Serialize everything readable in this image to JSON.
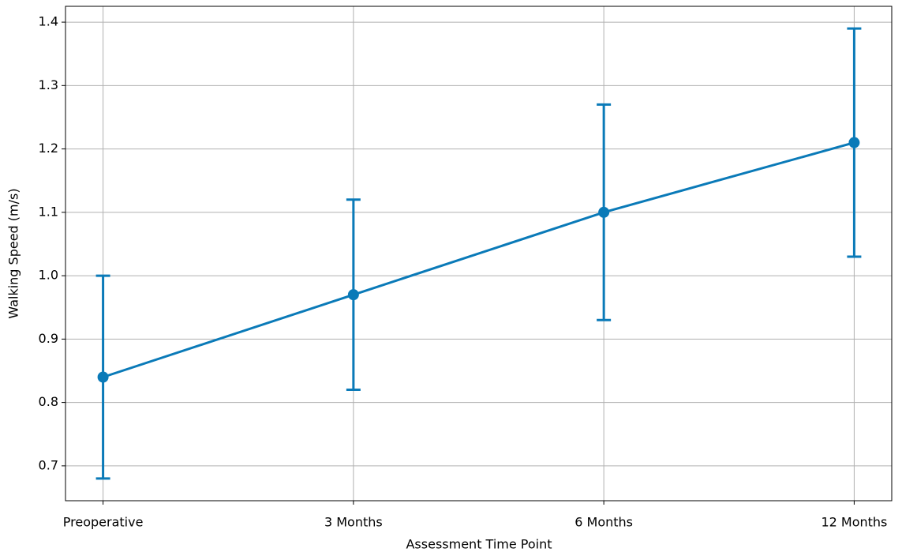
{
  "chart_data": {
    "type": "line",
    "xlabel": "Assessment Time Point",
    "ylabel": "Walking Speed (m/s)",
    "categories": [
      "Preoperative",
      "3 Months",
      "6 Months",
      "12 Months"
    ],
    "values": [
      0.84,
      0.97,
      1.1,
      1.21
    ],
    "errors": [
      0.16,
      0.15,
      0.17,
      0.18
    ],
    "color": "#0a7ab8",
    "ylim": [
      0.645,
      1.425
    ],
    "yticks": [
      0.7,
      0.8,
      0.9,
      {
        "value": 1,
        "label": "1.0"
      },
      1.1,
      1.2,
      1.3,
      1.4
    ],
    "grid": true
  }
}
